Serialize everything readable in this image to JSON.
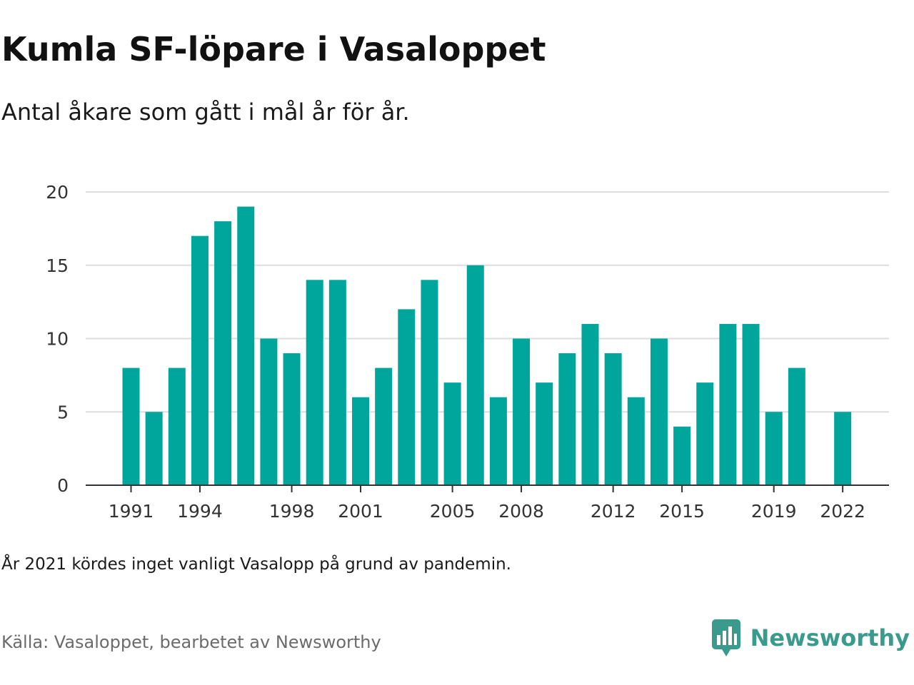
{
  "header": {
    "title": "Kumla SF-löpare i Vasaloppet",
    "subtitle": "Antal åkare som gått i mål år för år."
  },
  "footer": {
    "note": "År 2021 kördes inget vanligt Vasalopp på grund av pandemin.",
    "source": "Källa: Vasaloppet, bearbetet av Newsworthy",
    "brand": "Newsworthy",
    "brand_icon": "newsworthy-logo-icon"
  },
  "colors": {
    "bar": "#00A69C",
    "grid": "#dddddd",
    "axis": "#333333",
    "brand": "#3a9a8c"
  },
  "chart_data": {
    "type": "bar",
    "title": "Kumla SF-löpare i Vasaloppet",
    "subtitle": "Antal åkare som gått i mål år för år.",
    "xlabel": "",
    "ylabel": "",
    "categories": [
      "1991",
      "1992",
      "1993",
      "1994",
      "1995",
      "1996",
      "1997",
      "1998",
      "1999",
      "2000",
      "2001",
      "2002",
      "2003",
      "2004",
      "2005",
      "2006",
      "2007",
      "2008",
      "2009",
      "2010",
      "2011",
      "2012",
      "2013",
      "2014",
      "2015",
      "2016",
      "2017",
      "2018",
      "2019",
      "2020",
      "2021",
      "2022"
    ],
    "values": [
      8,
      5,
      8,
      17,
      18,
      19,
      10,
      9,
      14,
      14,
      6,
      8,
      12,
      14,
      7,
      15,
      6,
      10,
      7,
      9,
      11,
      9,
      6,
      10,
      4,
      7,
      11,
      11,
      5,
      8,
      null,
      5
    ],
    "x_tick_labels": [
      "1991",
      "1994",
      "1998",
      "2001",
      "2005",
      "2008",
      "2012",
      "2015",
      "2019",
      "2022"
    ],
    "y_ticks": [
      0,
      5,
      10,
      15,
      20
    ],
    "ylim": [
      0,
      20
    ],
    "grid": true,
    "legend": "none"
  }
}
